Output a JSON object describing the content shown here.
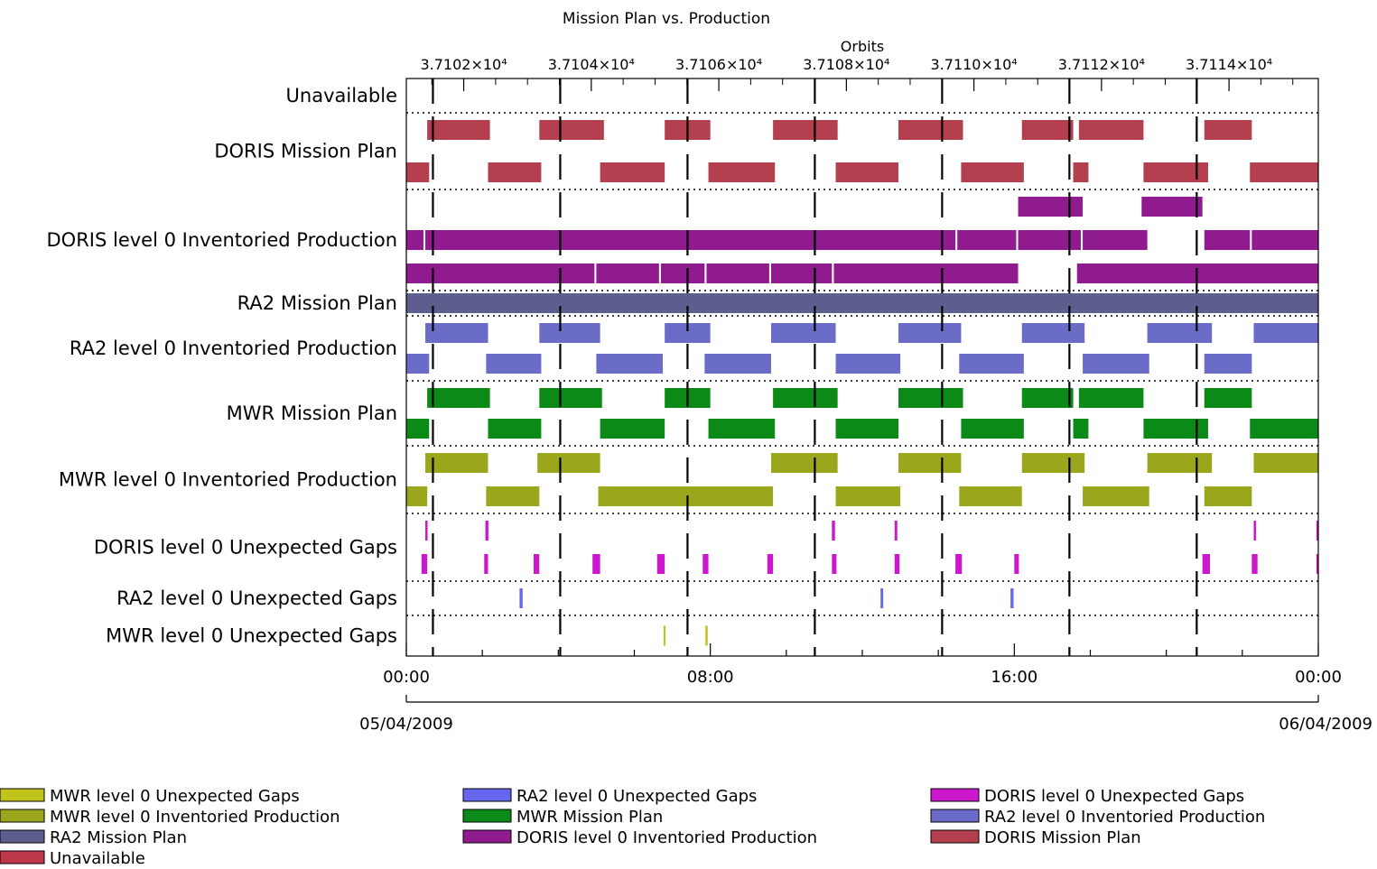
{
  "chart_data": {
    "type": "gantt",
    "title": "Mission Plan vs. Production",
    "top_axis": {
      "label": "Orbits",
      "range": [
        37101.1,
        37115.4
      ],
      "ticks": [
        {
          "value": 37102,
          "label": "3.7102×10⁴"
        },
        {
          "value": 37104,
          "label": "3.7104×10⁴"
        },
        {
          "value": 37106,
          "label": "3.7106×10⁴"
        },
        {
          "value": 37108,
          "label": "3.7108×10⁴"
        },
        {
          "value": 37110,
          "label": "3.7110×10⁴"
        },
        {
          "value": 37112,
          "label": "3.7112×10⁴"
        },
        {
          "value": 37114,
          "label": "3.7114×10⁴"
        }
      ]
    },
    "time_axis": {
      "range_hours": [
        0,
        24
      ],
      "ticks": [
        {
          "value": 0,
          "label": "00:00"
        },
        {
          "value": 8,
          "label": "08:00"
        },
        {
          "value": 16,
          "label": "16:00"
        },
        {
          "value": 24,
          "label": "00:00"
        }
      ],
      "dates": [
        {
          "value": 0,
          "label": "05/04/2009"
        },
        {
          "value": 24,
          "label": "06/04/2009"
        }
      ]
    },
    "orbit_boundaries_hours": [
      0.7,
      4.05,
      7.4,
      10.75,
      14.1,
      17.45,
      20.8
    ],
    "grid": "dotted row separators",
    "rows": [
      {
        "label": "Unavailable",
        "color": "#c0394b",
        "lanes": []
      },
      {
        "label": "DORIS Mission Plan",
        "color": "#b33f4f",
        "lanes": [
          [
            [
              0.55,
              2.2
            ],
            [
              3.5,
              5.2
            ],
            [
              6.8,
              8.0
            ],
            [
              9.65,
              11.35
            ],
            [
              12.95,
              14.65
            ],
            [
              16.2,
              17.55
            ],
            [
              17.7,
              19.4
            ],
            [
              21.0,
              22.25
            ]
          ],
          [
            [
              0,
              0.6
            ],
            [
              2.15,
              3.55
            ],
            [
              5.1,
              6.8
            ],
            [
              7.95,
              9.7
            ],
            [
              11.3,
              12.95
            ],
            [
              14.6,
              16.25
            ],
            [
              17.55,
              17.95
            ],
            [
              19.4,
              21.1
            ],
            [
              22.2,
              24
            ]
          ]
        ]
      },
      {
        "label": "DORIS level 0 Inventoried Production",
        "color": "#8f1b8f",
        "lanes": [
          [
            [
              16.1,
              17.8
            ],
            [
              19.35,
              20.95
            ]
          ],
          [
            [
              0,
              0.45
            ],
            [
              0.5,
              14.45
            ],
            [
              14.5,
              16.05
            ],
            [
              16.1,
              17.75
            ],
            [
              17.8,
              19.5
            ],
            [
              21.0,
              22.2
            ],
            [
              22.25,
              24
            ]
          ],
          [
            [
              0,
              4.95
            ],
            [
              5.0,
              6.65
            ],
            [
              6.7,
              7.85
            ],
            [
              7.9,
              9.55
            ],
            [
              9.6,
              11.2
            ],
            [
              11.25,
              16.1
            ],
            [
              17.65,
              24
            ]
          ]
        ]
      },
      {
        "label": "RA2 Mission Plan",
        "color": "#5e5e8e",
        "lanes": [
          [
            [
              0,
              24
            ]
          ]
        ]
      },
      {
        "label": "RA2 level 0 Inventoried Production",
        "color": "#6b6bc8",
        "lanes": [
          [
            [
              0.5,
              2.15
            ],
            [
              3.5,
              5.1
            ],
            [
              6.8,
              8.0
            ],
            [
              9.6,
              11.3
            ],
            [
              12.95,
              14.6
            ],
            [
              16.2,
              17.85
            ],
            [
              19.5,
              21.2
            ],
            [
              22.3,
              24
            ]
          ],
          [
            [
              0,
              0.6
            ],
            [
              2.1,
              3.55
            ],
            [
              5.0,
              6.75
            ],
            [
              7.85,
              9.6
            ],
            [
              11.3,
              13.0
            ],
            [
              14.55,
              16.25
            ],
            [
              17.8,
              19.55
            ],
            [
              21.0,
              22.25
            ]
          ]
        ]
      },
      {
        "label": "MWR Mission Plan",
        "color": "#0b8a18",
        "lanes": [
          [
            [
              0.55,
              2.2
            ],
            [
              3.5,
              5.15
            ],
            [
              6.8,
              8.0
            ],
            [
              9.65,
              11.35
            ],
            [
              12.95,
              14.65
            ],
            [
              16.2,
              17.55
            ],
            [
              17.7,
              19.4
            ],
            [
              21.0,
              22.25
            ]
          ],
          [
            [
              0,
              0.6
            ],
            [
              2.15,
              3.55
            ],
            [
              5.1,
              6.8
            ],
            [
              7.95,
              9.7
            ],
            [
              11.3,
              12.95
            ],
            [
              14.6,
              16.25
            ],
            [
              17.55,
              17.95
            ],
            [
              19.4,
              21.1
            ],
            [
              22.2,
              24
            ]
          ]
        ]
      },
      {
        "label": "MWR level 0 Inventoried Production",
        "color": "#9aa71c",
        "lanes": [
          [
            [
              0.5,
              2.15
            ],
            [
              3.45,
              5.1
            ],
            [
              9.6,
              11.35
            ],
            [
              12.95,
              14.6
            ],
            [
              16.2,
              17.85
            ],
            [
              19.5,
              21.2
            ],
            [
              22.3,
              24
            ]
          ],
          [
            [
              0,
              0.55
            ],
            [
              2.1,
              3.5
            ],
            [
              5.05,
              9.65
            ],
            [
              11.3,
              13.0
            ],
            [
              14.55,
              16.2
            ],
            [
              17.8,
              19.55
            ],
            [
              21.0,
              22.25
            ]
          ]
        ]
      },
      {
        "label": "DORIS level 0 Unexpected Gaps",
        "color": "#cc18cc",
        "lanes": [
          [
            [
              0.5,
              0.56
            ],
            [
              2.08,
              2.16
            ],
            [
              11.2,
              11.28
            ],
            [
              12.85,
              12.92
            ],
            [
              22.3,
              22.36
            ],
            [
              23.95,
              24
            ]
          ],
          [
            [
              0.4,
              0.55
            ],
            [
              2.05,
              2.15
            ],
            [
              3.35,
              3.5
            ],
            [
              4.9,
              5.1
            ],
            [
              6.6,
              6.8
            ],
            [
              7.8,
              7.95
            ],
            [
              9.5,
              9.65
            ],
            [
              11.2,
              11.32
            ],
            [
              12.85,
              12.98
            ],
            [
              14.45,
              14.62
            ],
            [
              16.0,
              16.12
            ],
            [
              20.95,
              21.15
            ],
            [
              22.25,
              22.4
            ],
            [
              23.95,
              24
            ]
          ]
        ]
      },
      {
        "label": "RA2 level 0 Unexpected Gaps",
        "color": "#6666ee",
        "lanes": [
          [
            [
              2.98,
              3.06
            ],
            [
              12.48,
              12.55
            ],
            [
              15.9,
              15.98
            ]
          ]
        ]
      },
      {
        "label": "MWR level 0 Unexpected Gaps",
        "color": "#c2c21c",
        "lanes": [
          [
            [
              6.77,
              6.82
            ],
            [
              7.87,
              7.93
            ]
          ]
        ]
      }
    ],
    "legend": {
      "placement": "bottom",
      "entries": [
        {
          "label": "MWR level 0 Unexpected Gaps",
          "color": "#c2c21c"
        },
        {
          "label": "MWR level 0 Inventoried Production",
          "color": "#9aa71c"
        },
        {
          "label": "RA2 Mission Plan",
          "color": "#5e5e8e"
        },
        {
          "label": "Unavailable",
          "color": "#c0394b"
        },
        {
          "label": "RA2 level 0 Unexpected Gaps",
          "color": "#6666ee"
        },
        {
          "label": "MWR Mission Plan",
          "color": "#0b8a18"
        },
        {
          "label": "DORIS level 0 Inventoried Production",
          "color": "#8f1b8f"
        },
        {
          "label": "DORIS level 0 Unexpected Gaps",
          "color": "#cc18cc"
        },
        {
          "label": "RA2 level 0 Inventoried Production",
          "color": "#6b6bc8"
        },
        {
          "label": "DORIS Mission Plan",
          "color": "#b33f4f"
        }
      ]
    }
  }
}
